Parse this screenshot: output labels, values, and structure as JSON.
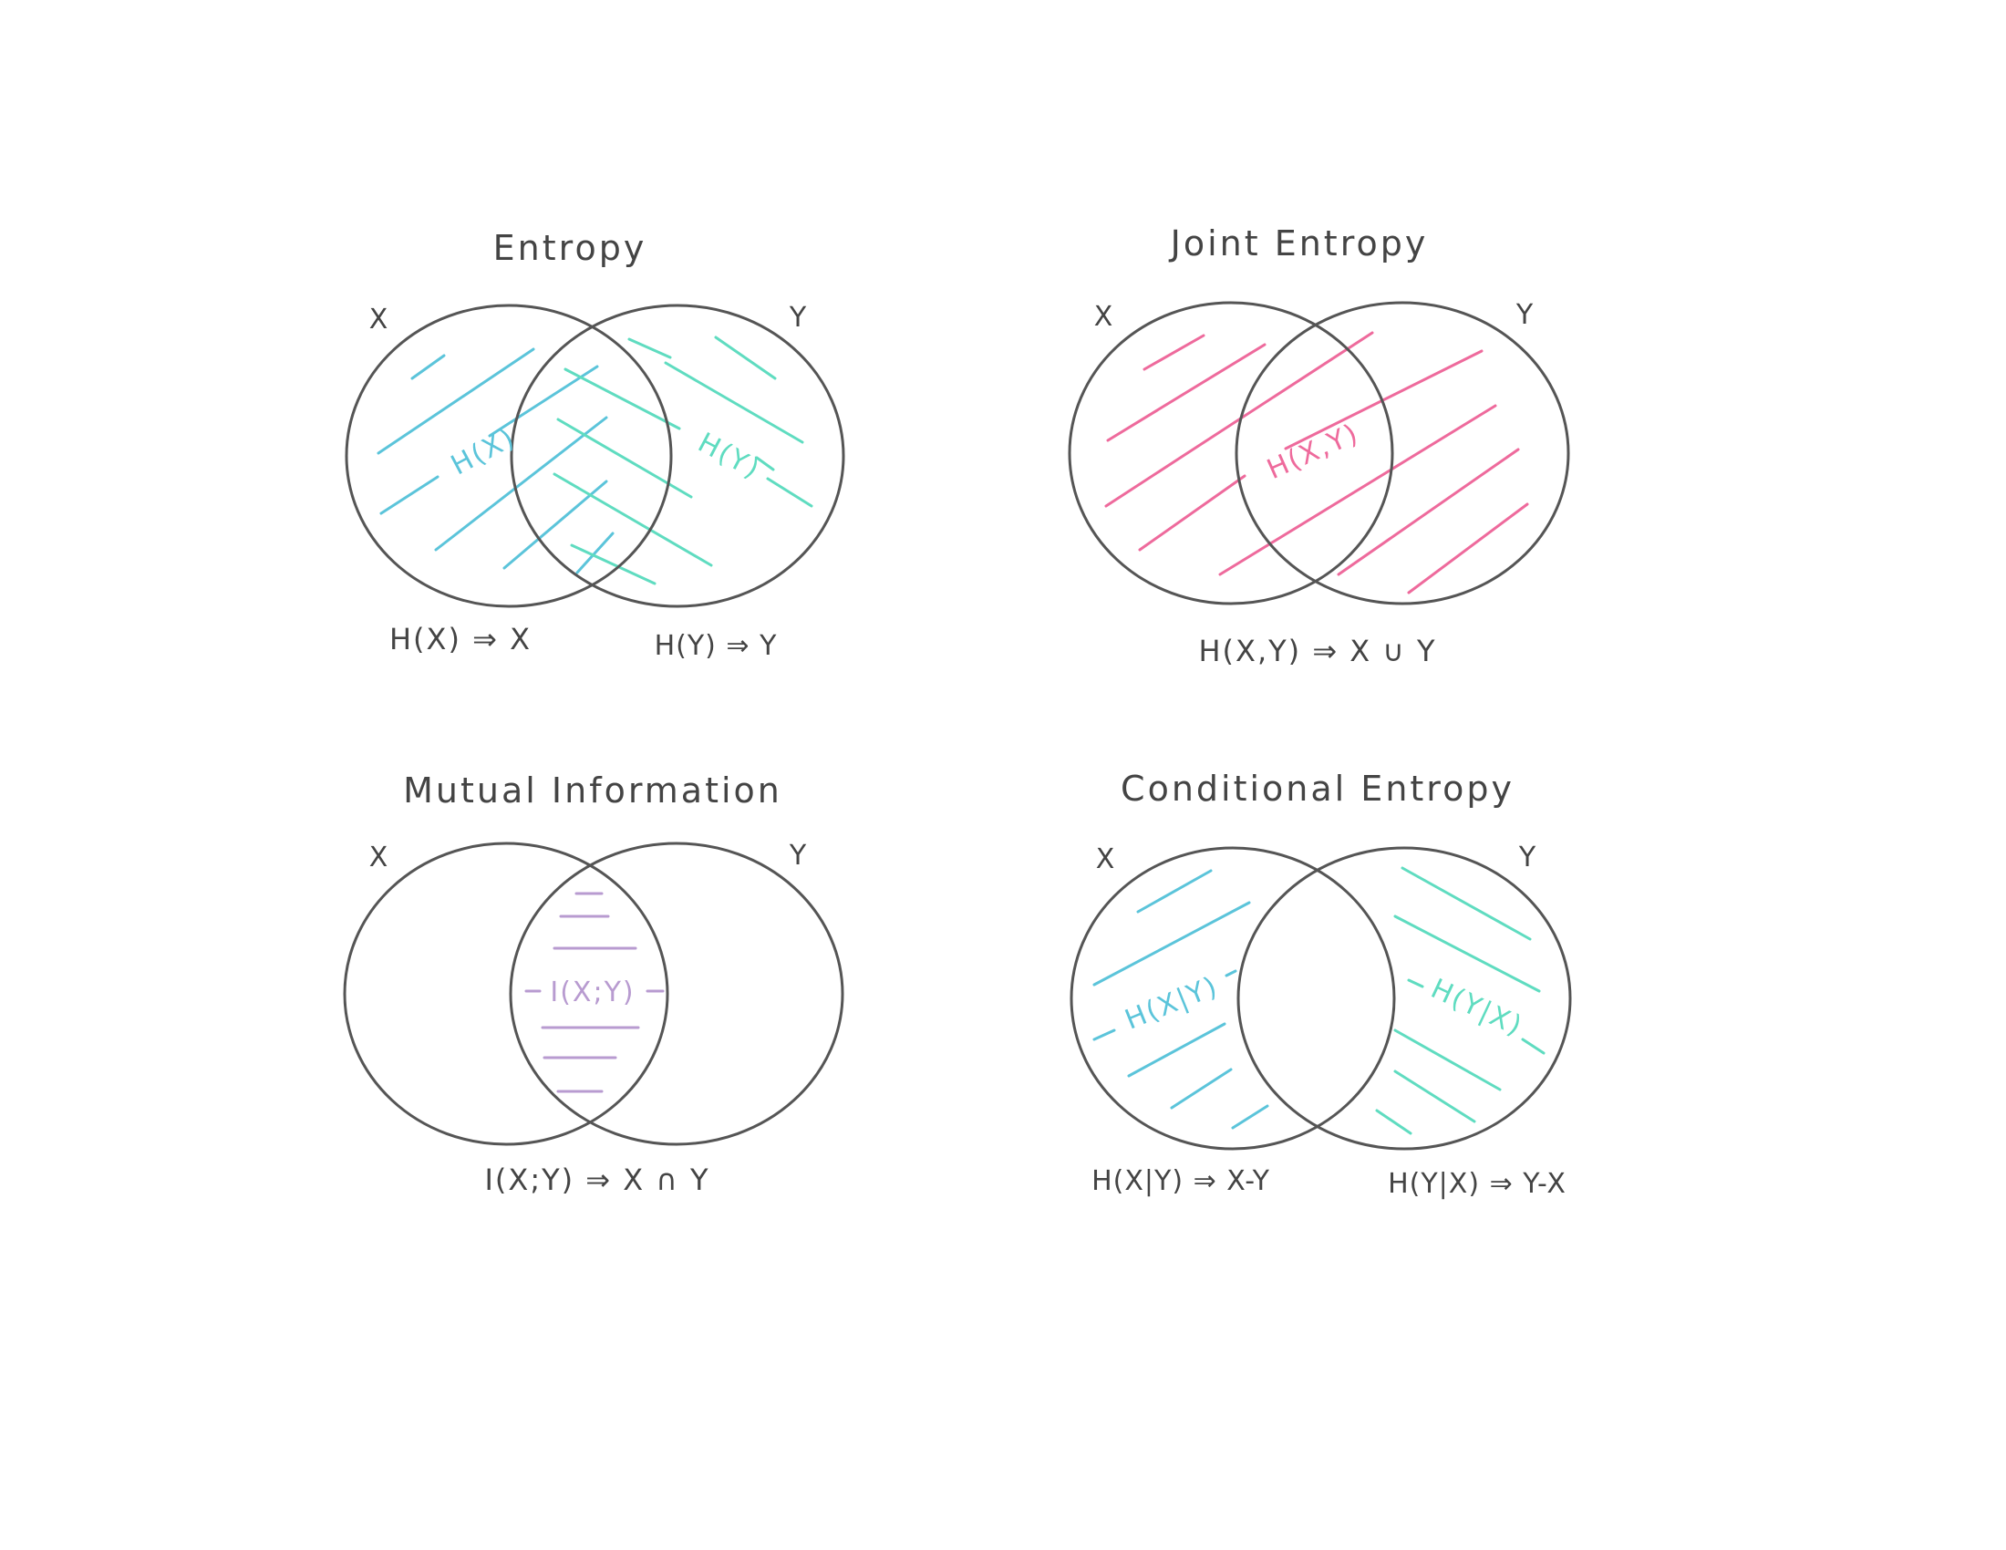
{
  "panels": {
    "entropy": {
      "title": "Entropy",
      "x_label": "X",
      "y_label": "Y",
      "region_x": "H(X)",
      "region_y": "H(Y)",
      "formula_x": "H(X) ⇒ X",
      "formula_y": "H(Y) ⇒ Y"
    },
    "joint": {
      "title": "Joint Entropy",
      "x_label": "X",
      "y_label": "Y",
      "region": "H(X,Y)",
      "formula": "H(X,Y) ⇒ X ∪ Y"
    },
    "mutual": {
      "title": "Mutual Information",
      "x_label": "X",
      "y_label": "Y",
      "region": "I(X;Y)",
      "formula": "I(X;Y) ⇒ X ∩ Y"
    },
    "conditional": {
      "title": "Conditional Entropy",
      "x_label": "X",
      "y_label": "Y",
      "region_x": "H(X|Y)",
      "region_y": "H(Y|X)",
      "formula_x": "H(X|Y) ⇒ X-Y",
      "formula_y": "H(Y|X) ⇒ Y-X"
    }
  },
  "colors": {
    "outline": "#555555",
    "blue": "#5bc4da",
    "teal": "#5fdcc0",
    "pink": "#ee6a9c",
    "purple": "#b89bd0"
  }
}
